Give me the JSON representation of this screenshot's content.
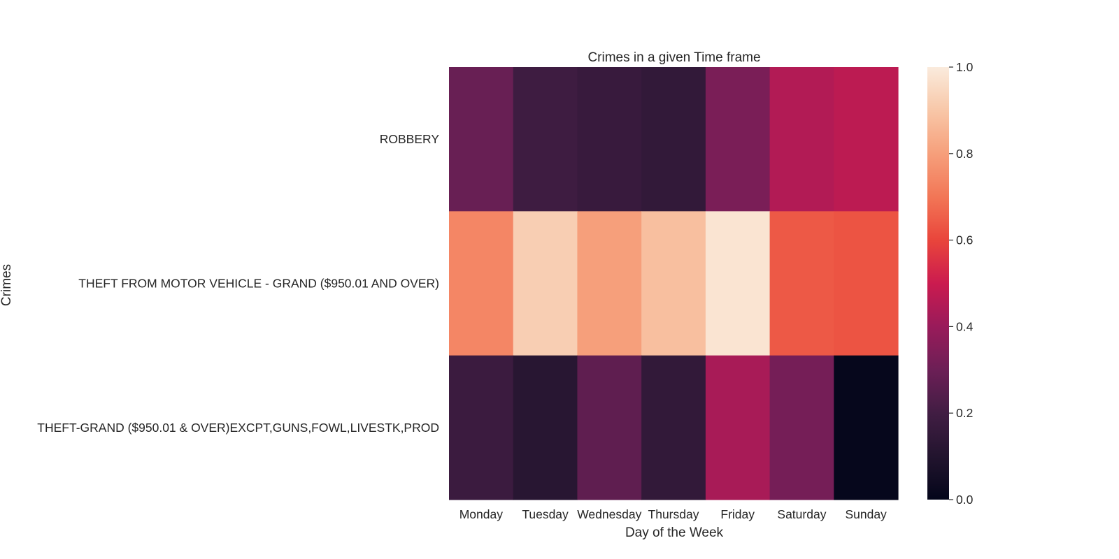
{
  "chart_data": {
    "type": "heatmap",
    "title": "Crimes in a given Time frame",
    "xlabel": "Day of the Week",
    "ylabel": "Crimes",
    "x_categories": [
      "Monday",
      "Tuesday",
      "Wednesday",
      "Thursday",
      "Friday",
      "Saturday",
      "Sunday"
    ],
    "y_categories": [
      "ROBBERY",
      "THEFT FROM MOTOR VEHICLE - GRAND ($950.01 AND OVER)",
      "THEFT-GRAND ($950.01 & OVER)EXCPT,GUNS,FOWL,LIVESTK,PROD"
    ],
    "values": [
      [
        0.29,
        0.19,
        0.17,
        0.15,
        0.33,
        0.45,
        0.47
      ],
      [
        0.74,
        0.92,
        0.8,
        0.88,
        0.98,
        0.64,
        0.63
      ],
      [
        0.18,
        0.12,
        0.27,
        0.15,
        0.43,
        0.32,
        0.01
      ]
    ],
    "colorbar": {
      "range": [
        0.0,
        1.0
      ],
      "ticks": [
        "0.0",
        "0.2",
        "0.4",
        "0.6",
        "0.8",
        "1.0"
      ],
      "colormap": "rocket"
    }
  }
}
